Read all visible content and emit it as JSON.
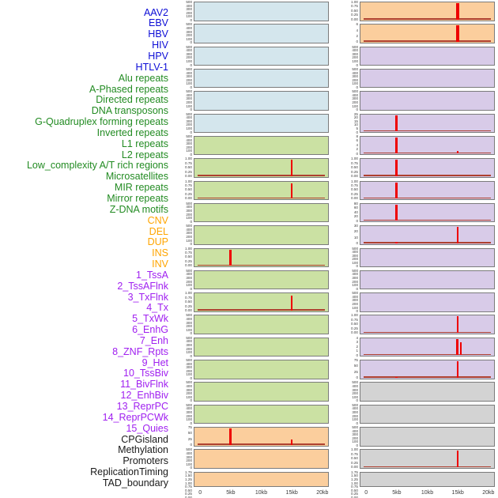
{
  "figure": {
    "background": "#ffffff",
    "spike_color": "#ee0000",
    "baseline_color": "#ae4030",
    "box_border_color": "#7b7b7b",
    "groups": {
      "virus": {
        "text": "#0d0dd6",
        "bg": "#d4e6ed"
      },
      "repeat": {
        "text": "#228b22",
        "bg": "#cbe1a3"
      },
      "sv": {
        "text": "#ffa500",
        "bg": "#fbce9d"
      },
      "chromatin": {
        "text": "#a020f0",
        "bg": "#d8cbe8"
      },
      "feature": {
        "text": "#1a1a1a",
        "bg": "#d3d3d3"
      }
    }
  },
  "chart_data": {
    "type": "bar",
    "layout": "small-multiples, 22 rows x 2 columns; 44 row labels listed down the left, one per mini plot (left column top-to-bottom, then right column top-to-bottom)",
    "x_axis": {
      "range_kb": [
        0,
        20
      ],
      "ticks_kb": [
        0,
        5,
        10,
        15,
        20
      ],
      "tick_labels": [
        "0",
        "5kb",
        "10kb",
        "15kb",
        "20kb"
      ]
    },
    "ytick_sets": {
      "v500": [
        "500",
        "400",
        "300",
        "200",
        "100",
        "0"
      ],
      "frac": [
        "1.00",
        "0.75",
        "0.50",
        "0.25",
        "0.00"
      ],
      "dense8": [
        "1.75",
        "1.50",
        "1.25",
        "1.00",
        "0.75",
        "0.50",
        "0.25",
        "0.00"
      ]
    },
    "columns": [
      {
        "name": "left",
        "rows": [
          {
            "label": "AAV2",
            "group": "virus",
            "yticks": "v500",
            "spikes": [],
            "baseline": false
          },
          {
            "label": "EBV",
            "group": "virus",
            "yticks": "v500",
            "spikes": [],
            "baseline": false
          },
          {
            "label": "HBV",
            "group": "virus",
            "yticks": "v500",
            "spikes": [],
            "baseline": false
          },
          {
            "label": "HIV",
            "group": "virus",
            "yticks": "v500",
            "spikes": [],
            "baseline": false
          },
          {
            "label": "HPV",
            "group": "virus",
            "yticks": "v500",
            "spikes": [],
            "baseline": false
          },
          {
            "label": "HTLV-1",
            "group": "virus",
            "yticks": "v500",
            "spikes": [],
            "baseline": false
          },
          {
            "label": "Alu repeats",
            "group": "repeat",
            "yticks": "v500",
            "spikes": [],
            "baseline": false
          },
          {
            "label": "A-Phased repeats",
            "group": "repeat",
            "yticks": "frac",
            "spikes": [
              {
                "kb": 15,
                "h": 1.0
              }
            ],
            "baseline": true
          },
          {
            "label": "Directed repeats",
            "group": "repeat",
            "yticks": "frac",
            "spikes": [
              {
                "kb": 15,
                "h": 0.93
              }
            ],
            "baseline": true
          },
          {
            "label": "DNA transposons",
            "group": "repeat",
            "yticks": "v500",
            "spikes": [],
            "baseline": false
          },
          {
            "label": "G-Quadruplex forming repeats",
            "group": "repeat",
            "yticks": "v500",
            "spikes": [],
            "baseline": false
          },
          {
            "label": "Inverted repeats",
            "group": "repeat",
            "yticks": "frac",
            "spikes": [
              {
                "kb": 5,
                "h": 1.0
              }
            ],
            "baseline": true
          },
          {
            "label": "L1 repeats",
            "group": "repeat",
            "yticks": "v500",
            "spikes": [],
            "baseline": false
          },
          {
            "label": "L2 repeats",
            "group": "repeat",
            "yticks": "frac",
            "spikes": [
              {
                "kb": 15,
                "h": 0.9
              }
            ],
            "baseline": true
          },
          {
            "label": "Low_complexity A/T rich regions",
            "group": "repeat",
            "yticks": "v500",
            "spikes": [],
            "baseline": false
          },
          {
            "label": "Microsatellites",
            "group": "repeat",
            "yticks": "v500",
            "spikes": [],
            "baseline": false
          },
          {
            "label": "MIR repeats",
            "group": "repeat",
            "yticks": "v500",
            "spikes": [],
            "baseline": false
          },
          {
            "label": "Mirror repeats",
            "group": "repeat",
            "yticks": "v500",
            "spikes": [],
            "baseline": false
          },
          {
            "label": "Z-DNA motifs",
            "group": "repeat",
            "yticks": "v500",
            "spikes": [],
            "baseline": false
          },
          {
            "label": "CNV",
            "group": "sv",
            "yticks": [
              "75",
              "50",
              "25",
              "0"
            ],
            "spikes": [
              {
                "kb": 5,
                "h": 1.0
              },
              {
                "kb": 15,
                "h": 0.36
              }
            ],
            "baseline": true
          },
          {
            "label": "DEL",
            "group": "sv",
            "yticks": "v500",
            "spikes": [],
            "baseline": false
          },
          {
            "label": "DUP",
            "group": "sv",
            "yticks": "dense8",
            "spikes": [],
            "baseline": false
          }
        ]
      },
      {
        "name": "right",
        "rows": [
          {
            "label": "INS",
            "group": "sv",
            "yticks": "frac",
            "spikes": [
              {
                "kb": 15,
                "h": 1.0,
                "w": 3.4
              }
            ],
            "baseline": true
          },
          {
            "label": "INV",
            "group": "sv",
            "yticks": [
              "6",
              "4",
              "2",
              "0"
            ],
            "spikes": [
              {
                "kb": 15,
                "h": 1.0,
                "w": 3.4
              }
            ],
            "baseline": true
          },
          {
            "label": "1_TssA",
            "group": "chromatin",
            "yticks": "v500",
            "spikes": [],
            "baseline": false
          },
          {
            "label": "2_TssAFlnk",
            "group": "chromatin",
            "yticks": "v500",
            "spikes": [],
            "baseline": false
          },
          {
            "label": "3_TxFlnk",
            "group": "chromatin",
            "yticks": "v500",
            "spikes": [],
            "baseline": false
          },
          {
            "label": "4_Tx",
            "group": "chromatin",
            "yticks": [
              "25",
              "20",
              "15",
              "10",
              "5",
              "0"
            ],
            "spikes": [
              {
                "kb": 5,
                "h": 1.0
              }
            ],
            "baseline": true
          },
          {
            "label": "5_TxWk",
            "group": "chromatin",
            "yticks": [
              "8",
              "6",
              "4",
              "2",
              "0"
            ],
            "spikes": [
              {
                "kb": 5,
                "h": 1.0
              },
              {
                "kb": 15,
                "h": 0.25
              }
            ],
            "baseline": true
          },
          {
            "label": "6_EnhG",
            "group": "chromatin",
            "yticks": "frac",
            "spikes": [
              {
                "kb": 5,
                "h": 1.0
              }
            ],
            "baseline": true
          },
          {
            "label": "7_Enh",
            "group": "chromatin",
            "yticks": "frac",
            "spikes": [
              {
                "kb": 5,
                "h": 1.0
              }
            ],
            "baseline": true
          },
          {
            "label": "8_ZNF_Rpts",
            "group": "chromatin",
            "yticks": [
              "80",
              "60",
              "40",
              "20",
              "0"
            ],
            "spikes": [
              {
                "kb": 5,
                "h": 1.0
              }
            ],
            "baseline": true
          },
          {
            "label": "9_Het",
            "group": "chromatin",
            "yticks": [
              "30",
              "20",
              "10",
              "0"
            ],
            "spikes": [
              {
                "kb": 15,
                "h": 1.0
              },
              {
                "kb": 5,
                "h": 0.18
              }
            ],
            "baseline": true
          },
          {
            "label": "10_TssBiv",
            "group": "chromatin",
            "yticks": "v500",
            "spikes": [],
            "baseline": false
          },
          {
            "label": "11_BivFlnk",
            "group": "chromatin",
            "yticks": "v500",
            "spikes": [],
            "baseline": false
          },
          {
            "label": "12_EnhBiv",
            "group": "chromatin",
            "yticks": "v500",
            "spikes": [],
            "baseline": false
          },
          {
            "label": "13_ReprPC",
            "group": "chromatin",
            "yticks": "frac",
            "spikes": [
              {
                "kb": 15,
                "h": 1.0
              }
            ],
            "baseline": true
          },
          {
            "label": "14_ReprPCWk",
            "group": "chromatin",
            "yticks": [
              "4",
              "3",
              "2",
              "1",
              "0"
            ],
            "spikes": [
              {
                "kb": 15,
                "h": 1.0,
                "w": 3
              },
              {
                "kb": 15.5,
                "h": 0.8,
                "w": 2
              }
            ],
            "baseline": true
          },
          {
            "label": "15_Quies",
            "group": "chromatin",
            "yticks": [
              "75",
              "50",
              "25",
              "0"
            ],
            "spikes": [
              {
                "kb": 15,
                "h": 1.0
              },
              {
                "kb": 5,
                "h": 0.13
              }
            ],
            "baseline": true
          },
          {
            "label": "CPGisland",
            "group": "feature",
            "yticks": "v500",
            "spikes": [],
            "baseline": false
          },
          {
            "label": "Methylation",
            "group": "feature",
            "yticks": "v500",
            "spikes": [],
            "baseline": false
          },
          {
            "label": "Promoters",
            "group": "feature",
            "yticks": "v500",
            "spikes": [],
            "baseline": false
          },
          {
            "label": "ReplicationTiming",
            "group": "feature",
            "yticks": "frac",
            "spikes": [
              {
                "kb": 15,
                "h": 1.0
              }
            ],
            "baseline": true
          },
          {
            "label": "TAD_boundary",
            "group": "feature",
            "yticks": "dense8",
            "spikes": [],
            "baseline": false
          }
        ]
      }
    ]
  }
}
